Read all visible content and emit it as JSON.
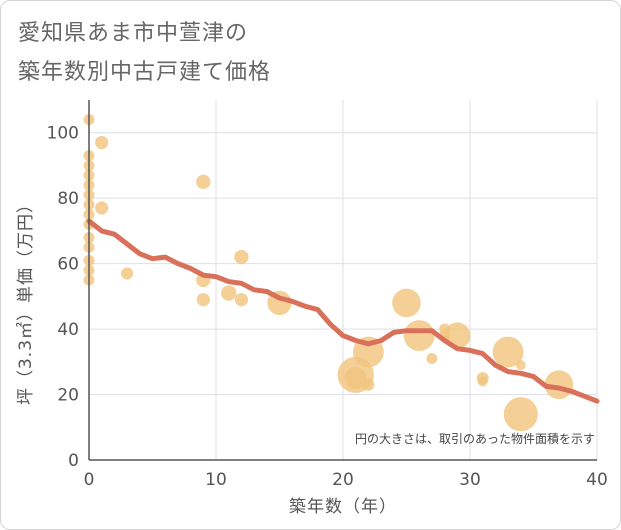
{
  "titles": {
    "line1": "愛知県あま市中萱津の",
    "line2": "築年数別中古戸建て価格"
  },
  "chart_data": {
    "type": "scatter",
    "xlabel": "築年数（年）",
    "ylabel": "坪（3.3㎡）単価（万円）",
    "xlim": [
      0,
      40
    ],
    "ylim": [
      0,
      110
    ],
    "xticks": [
      0,
      10,
      20,
      30,
      40
    ],
    "yticks": [
      0,
      20,
      40,
      60,
      80,
      100
    ],
    "grid": true,
    "note": "円の大きさは、取引のあった物件面積を示す",
    "colors": {
      "bubble": "#f2c47f",
      "line": "#d9705a",
      "grid": "#dcdfe6",
      "axis": "#555555"
    },
    "bubbles": [
      {
        "x": 0,
        "y": 104,
        "s": 1
      },
      {
        "x": 0,
        "y": 93,
        "s": 1
      },
      {
        "x": 0,
        "y": 90,
        "s": 1
      },
      {
        "x": 0,
        "y": 87,
        "s": 1
      },
      {
        "x": 0,
        "y": 84,
        "s": 1
      },
      {
        "x": 0,
        "y": 81,
        "s": 1
      },
      {
        "x": 0,
        "y": 78,
        "s": 1
      },
      {
        "x": 0,
        "y": 75,
        "s": 1
      },
      {
        "x": 0,
        "y": 72,
        "s": 1
      },
      {
        "x": 0,
        "y": 68,
        "s": 1
      },
      {
        "x": 0,
        "y": 65,
        "s": 1
      },
      {
        "x": 0,
        "y": 61,
        "s": 1
      },
      {
        "x": 0,
        "y": 58,
        "s": 1
      },
      {
        "x": 0,
        "y": 55,
        "s": 1
      },
      {
        "x": 1,
        "y": 97,
        "s": 1.2
      },
      {
        "x": 1,
        "y": 77,
        "s": 1.2
      },
      {
        "x": 3,
        "y": 57,
        "s": 1.1
      },
      {
        "x": 9,
        "y": 85,
        "s": 1.3
      },
      {
        "x": 9,
        "y": 55,
        "s": 1.3
      },
      {
        "x": 9,
        "y": 49,
        "s": 1.2
      },
      {
        "x": 11,
        "y": 51,
        "s": 1.4
      },
      {
        "x": 12,
        "y": 62,
        "s": 1.3
      },
      {
        "x": 12,
        "y": 49,
        "s": 1.2
      },
      {
        "x": 15,
        "y": 48,
        "s": 2.2
      },
      {
        "x": 21,
        "y": 26,
        "s": 3.3
      },
      {
        "x": 21,
        "y": 25,
        "s": 2.0
      },
      {
        "x": 22,
        "y": 33,
        "s": 2.8
      },
      {
        "x": 22,
        "y": 23,
        "s": 1.1
      },
      {
        "x": 25,
        "y": 48,
        "s": 2.6
      },
      {
        "x": 26,
        "y": 38,
        "s": 2.8
      },
      {
        "x": 27,
        "y": 31,
        "s": 1.0
      },
      {
        "x": 28,
        "y": 40,
        "s": 1.0
      },
      {
        "x": 28,
        "y": 38,
        "s": 1.0
      },
      {
        "x": 29,
        "y": 38,
        "s": 2.4
      },
      {
        "x": 31,
        "y": 25,
        "s": 1.1
      },
      {
        "x": 31,
        "y": 24,
        "s": 0.9
      },
      {
        "x": 33,
        "y": 33,
        "s": 2.8
      },
      {
        "x": 34,
        "y": 29,
        "s": 0.9
      },
      {
        "x": 34,
        "y": 14,
        "s": 3.1
      },
      {
        "x": 37,
        "y": 23,
        "s": 2.6
      }
    ],
    "trend": {
      "x": [
        0,
        1,
        2,
        3,
        4,
        5,
        6,
        7,
        8,
        9,
        10,
        11,
        12,
        13,
        14,
        15,
        16,
        17,
        18,
        19,
        20,
        21,
        22,
        23,
        24,
        25,
        26,
        27,
        28,
        29,
        30,
        31,
        32,
        33,
        34,
        35,
        36,
        37,
        38,
        39,
        40
      ],
      "y": [
        73,
        70,
        69,
        66,
        63,
        61.5,
        62,
        60,
        58.5,
        56.5,
        56,
        54.5,
        54,
        52,
        51.5,
        49.5,
        48.5,
        47,
        46,
        41.5,
        38,
        36.5,
        35.5,
        36.5,
        39,
        39.5,
        39.5,
        39.5,
        36.5,
        34,
        33.5,
        32.5,
        29,
        27,
        26.5,
        25.5,
        22.5,
        22,
        21,
        19.5,
        18
      ]
    }
  }
}
